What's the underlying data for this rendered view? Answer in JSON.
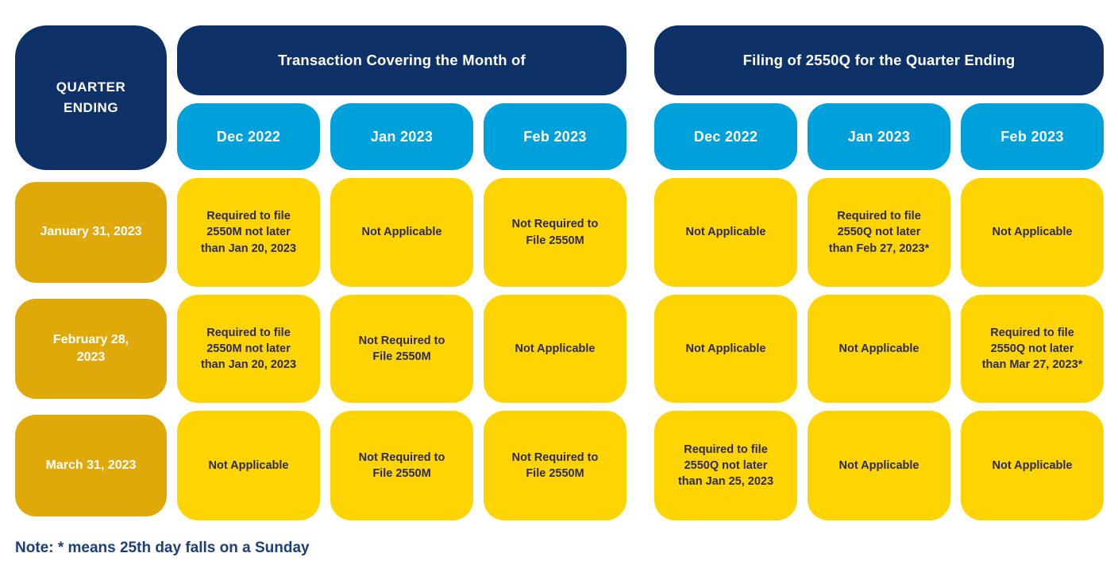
{
  "colors": {
    "navy": "#0e3167",
    "cyan": "#00a0da",
    "gold": "#e0a90a",
    "yellow": "#ffd403",
    "cell_text": "#2e2a55",
    "note_text": "#1c3e79",
    "header_text": "#ffffff"
  },
  "corner_label": "QUARTER ENDING",
  "group_headers": {
    "transactions": "Transaction Covering the Month of",
    "filing": "Filing of 2550Q for the Quarter Ending"
  },
  "month_headers": [
    "Dec 2022",
    "Jan 2023",
    "Feb 2023",
    "Dec 2022",
    "Jan 2023",
    "Feb 2023"
  ],
  "rows": [
    {
      "label": "January 31, 2023",
      "cells": [
        "Required to file 2550M not later than Jan 20, 2023",
        "Not Applicable",
        "Not Required to File 2550M",
        "Not Applicable",
        "Required to file 2550Q not later than Feb 27, 2023*",
        "Not Applicable"
      ]
    },
    {
      "label": "February 28, 2023",
      "cells": [
        "Required to file 2550M not later than Jan 20, 2023",
        "Not Required to File 2550M",
        "Not Applicable",
        "Not Applicable",
        "Not Applicable",
        "Required to file 2550Q not later than Mar 27, 2023*"
      ]
    },
    {
      "label": "March 31, 2023",
      "cells": [
        "Not Applicable",
        "Not Required to File 2550M",
        "Not Required to File 2550M",
        "Required to file 2550Q not later than Jan 25, 2023",
        "Not Applicable",
        "Not Applicable"
      ]
    }
  ],
  "note": "Note: * means 25th day falls on a Sunday"
}
